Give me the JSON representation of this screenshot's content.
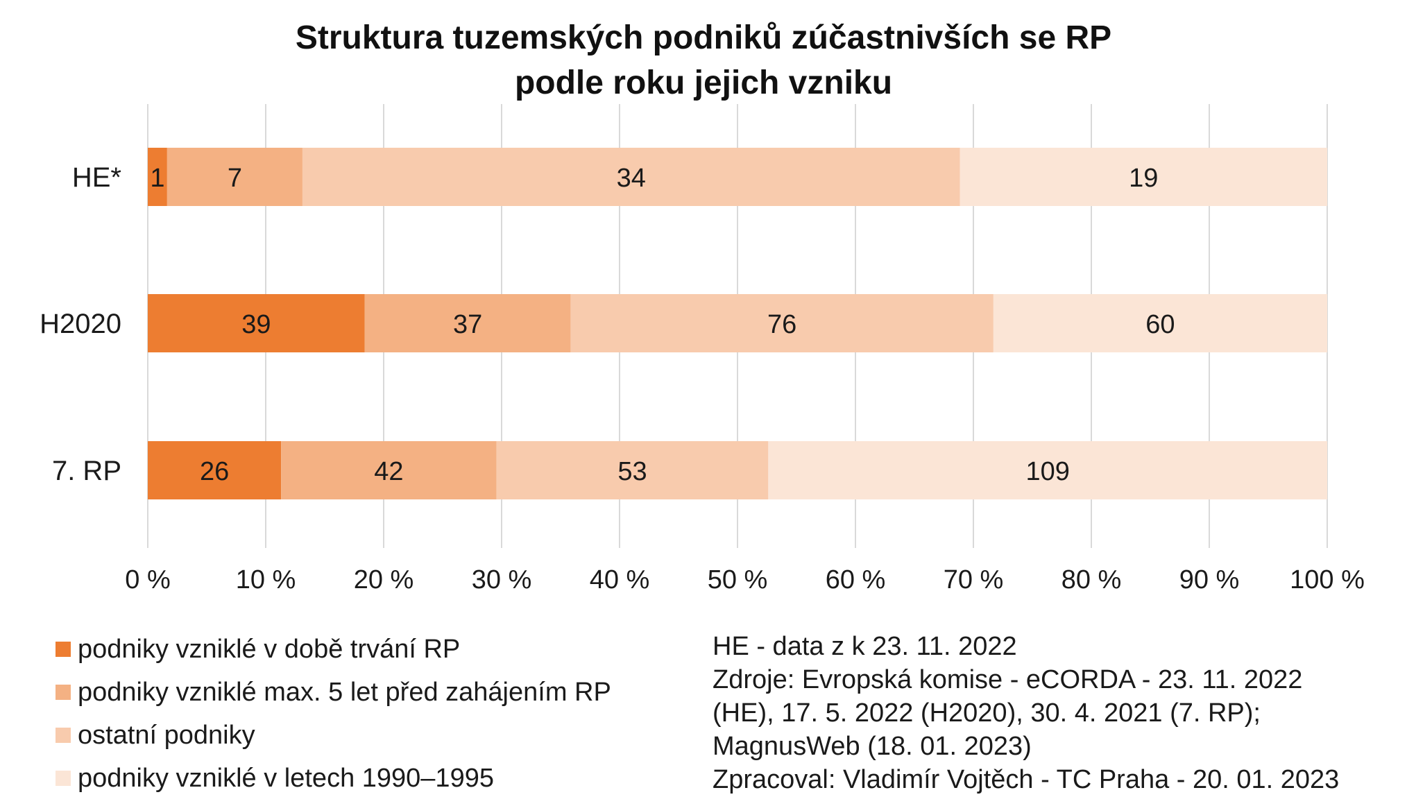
{
  "chart_data": {
    "type": "bar",
    "orientation": "horizontal",
    "stacked": "percent",
    "title_lines": [
      "Struktura tuzemských podniků zúčastnivších se RP",
      "podle roku jejich vzniku"
    ],
    "categories": [
      "HE*",
      "H2020",
      "7. RP"
    ],
    "series": [
      {
        "name": "podniky vzniklé v době trvání RP",
        "color": "#ed7d31",
        "values": [
          1,
          39,
          26
        ]
      },
      {
        "name": "podniky vzniklé max. 5 let před zahájením RP",
        "color": "#f4b183",
        "values": [
          7,
          37,
          42
        ]
      },
      {
        "name": "ostatní podniky",
        "color": "#f8cbad",
        "values": [
          34,
          76,
          53
        ]
      },
      {
        "name": "podniky vzniklé v letech 1990–1995",
        "color": "#fbe5d6",
        "values": [
          19,
          60,
          109
        ]
      }
    ],
    "xlim": [
      0,
      100
    ],
    "x_ticks": [
      0,
      10,
      20,
      30,
      40,
      50,
      60,
      70,
      80,
      90,
      100
    ],
    "x_tick_labels": [
      "0 %",
      "10 %",
      "20 %",
      "30 %",
      "40 %",
      "50 %",
      "60 %",
      "70 %",
      "80 %",
      "90 %",
      "100 %"
    ],
    "grid": true,
    "grid_color": "#d9d9d9",
    "legend_position": "bottom-left"
  },
  "notes": [
    "HE - data z k 23. 11. 2022",
    "Zdroje: Evropská komise - eCORDA - 23. 11. 2022",
    "(HE), 17. 5. 2022 (H2020), 30. 4. 2021 (7. RP);",
    "MagnusWeb (18. 01. 2023)",
    "Zpracoval: Vladimír Vojtěch - TC Praha - 20. 01. 2023"
  ]
}
